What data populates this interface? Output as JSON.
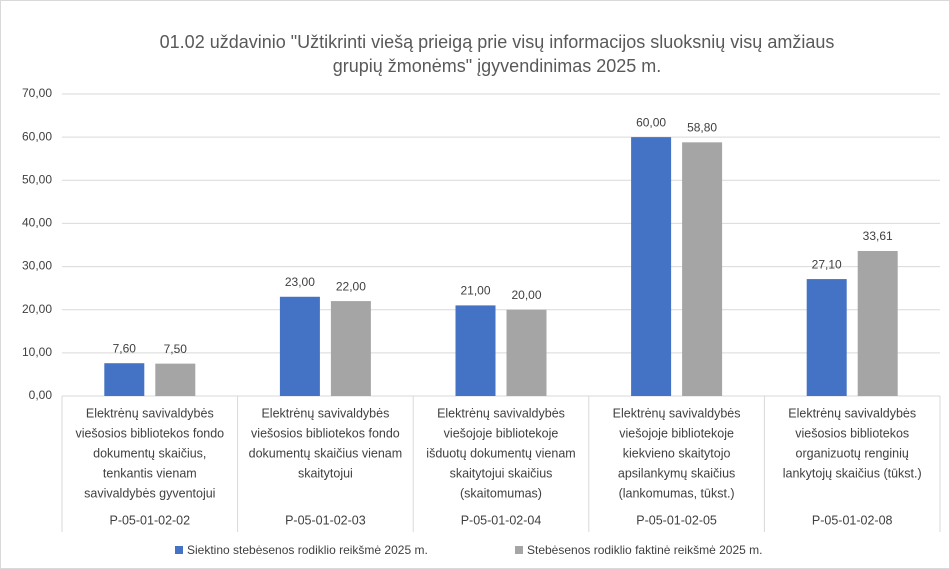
{
  "chart_data": {
    "type": "bar",
    "title": [
      "01.02 uždavinio \"Užtikrinti viešą prieigą prie visų informacijos sluoksnių visų amžiaus",
      "grupių žmonėms\" įgyvendinimas 2025 m."
    ],
    "categories": [
      [
        "Elektrėnų savivaldybės",
        "viešosios bibliotekos fondo",
        "dokumentų skaičius,",
        "tenkantis vienam",
        "savivaldybės gyventojui"
      ],
      [
        "Elektrėnų savivaldybės",
        "viešosios bibliotekos fondo",
        "dokumentų skaičius vienam",
        "skaitytojui"
      ],
      [
        "Elektrėnų savivaldybės",
        "viešojoje bibliotekoje",
        "išduotų dokumentų vienam",
        "skaitytojui skaičius",
        "(skaitomumas)"
      ],
      [
        "Elektrėnų savivaldybės",
        "viešojoje bibliotekoje",
        "kiekvieno skaitytojo",
        "apsilankymų skaičius",
        "(lankomumas, tūkst.)"
      ],
      [
        "Elektrėnų savivaldybės",
        "viešosios bibliotekos",
        "organizuotų renginių",
        "lankytojų skaičius (tūkst.)"
      ]
    ],
    "groups": [
      "P-05-01-02-02",
      "P-05-01-02-03",
      "P-05-01-02-04",
      "P-05-01-02-05",
      "P-05-01-02-08"
    ],
    "series": [
      {
        "name": "Siektino stebėsenos rodiklio reikšmė 2025 m.",
        "color": "#4472c4",
        "values": [
          7.6,
          23,
          21,
          60,
          27.1
        ],
        "value_labels": [
          "7,60",
          "23,00",
          "21,00",
          "60,00",
          "27,10"
        ]
      },
      {
        "name": "Stebėsenos rodiklio faktinė reikšmė 2025 m.",
        "color": "#a5a5a5",
        "values": [
          7.5,
          22,
          20,
          58.8,
          33.61
        ],
        "value_labels": [
          "7,50",
          "22,00",
          "20,00",
          "58,80",
          "33,61"
        ]
      }
    ],
    "ylim": [
      0,
      70
    ],
    "yticks": [
      {
        "value": 0,
        "label": "0,00"
      },
      {
        "value": 10,
        "label": "10,00"
      },
      {
        "value": 20,
        "label": "20,00"
      },
      {
        "value": 30,
        "label": "30,00"
      },
      {
        "value": 40,
        "label": "40,00"
      },
      {
        "value": 50,
        "label": "50,00"
      },
      {
        "value": 60,
        "label": "60,00"
      },
      {
        "value": 70,
        "label": "70,00"
      }
    ],
    "grid": true,
    "legend": "bottom"
  }
}
